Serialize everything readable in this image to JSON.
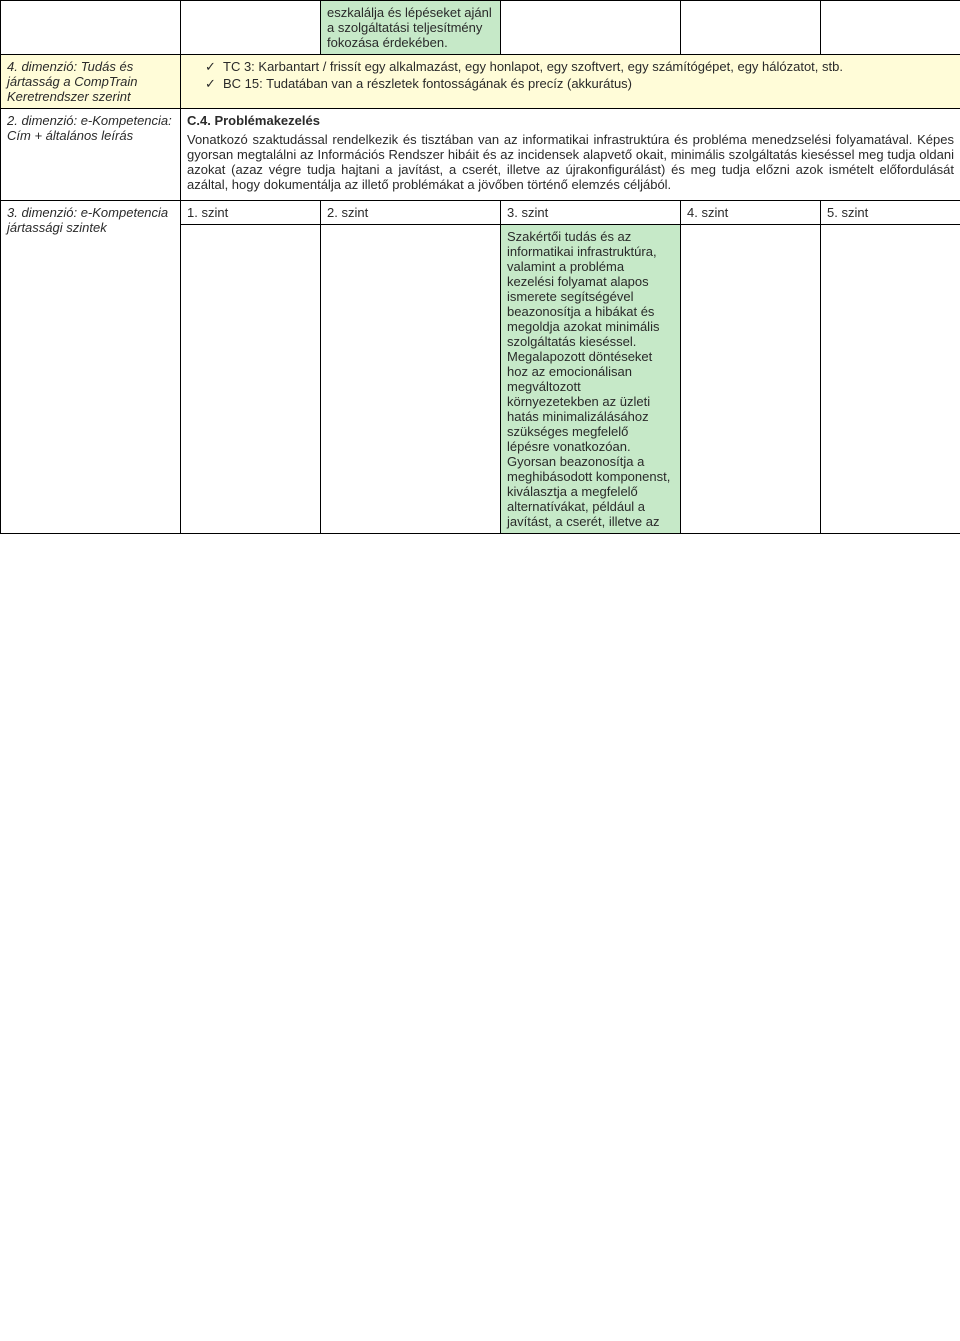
{
  "row0": {
    "cell2": "eszkalálja és lépéseket ajánl a szolgáltatási teljesítmény fokozása érdekében."
  },
  "row1": {
    "label": "4. dimenzió: Tudás és jártasság a CompTrain Keretrendszer szerint",
    "li1": "TC 3: Karbantart / frissít egy alkalmazást, egy honlapot, egy szoftvert, egy számítógépet, egy hálózatot, stb.",
    "li2": "BC 15: Tudatában van a részletek fontosságának és precíz (akkurátus)"
  },
  "row2": {
    "label": "2. dimenzió: e-Kompetencia: Cím + általános leírás",
    "title": "C.4. Problémakezelés",
    "p1": "Vonatkozó szaktudással rendelkezik és tisztában van az informatikai infrastruktúra és probléma menedzselési folyamatával. Képes gyorsan megtalálni az Információs Rendszer hibáit és az incidensek alapvető okait, minimális szolgáltatás kieséssel meg tudja oldani azokat (azaz végre tudja hajtani a javítást, a cserét, illetve az újrakonfigurálást) és meg tudja előzni azok ismételt előfordulását azáltal, hogy dokumentálja az illető problémákat a jövőben történő elemzés céljából."
  },
  "row3": {
    "label": "3. dimenzió: e-Kompetencia jártassági szintek",
    "h1": "1. szint",
    "h2": "2. szint",
    "h3": "3. szint",
    "h4": "4. szint",
    "h5": "5. szint"
  },
  "row4": {
    "c3": "Szakértői tudás és az informatikai infrastruktúra, valamint a probléma kezelési folyamat alapos ismerete segítségével beazonosítja a hibákat és megoldja azokat minimális szolgáltatás kieséssel. Megalapozott döntéseket hoz az emocionálisan megváltozott környezetekben az üzleti hatás minimalizálásához szükséges megfelelő lépésre vonatkozóan. Gyorsan beazonosítja a meghibásodott komponenst, kiválasztja a megfelelő alternatívákat, például a javítást, a cserét, illetve az"
  }
}
